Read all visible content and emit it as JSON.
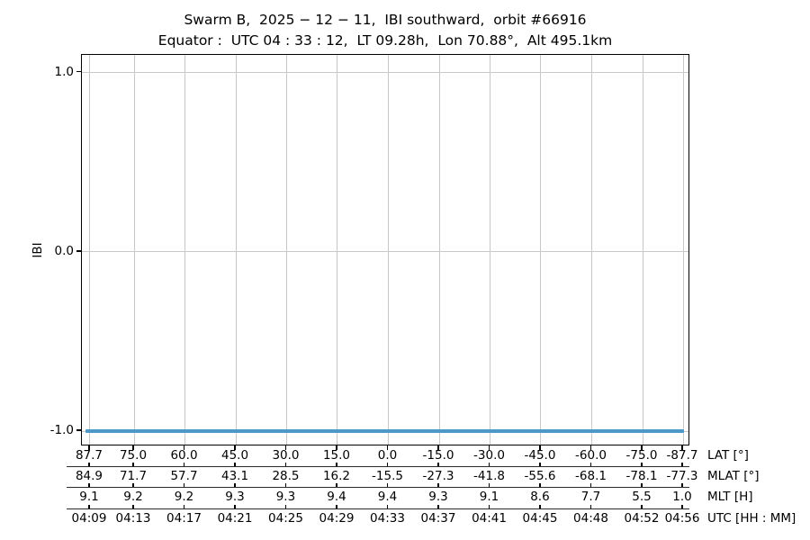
{
  "title": "Swarm B,  2025 − 12 − 11,  IBI southward,  orbit #66916",
  "subtitle": "Equator :  UTC 04 : 33 : 12,  LT 09.28h,  Lon 70.88°,  Alt 495.1km",
  "ylabel": "IBI",
  "row_labels": {
    "lat": "LAT [°]",
    "mlat": "MLAT [°]",
    "mlt": "MLT [H]",
    "utc": "UTC [HH : MM]"
  },
  "colors": {
    "line": "#4c99c8",
    "grid": "#c8c8c8",
    "axis": "#000000"
  },
  "chart_data": {
    "type": "line",
    "title": "Swarm B, 2025-12-11, IBI southward, orbit #66916",
    "subtitle": "Equator: UTC 04:33:12, LT 09.28h, Lon 70.88°, Alt 495.1km",
    "ylabel": "IBI",
    "ylim": [
      -1.085,
      1.1
    ],
    "grid": true,
    "y_ticks": [
      {
        "value": 1.0,
        "label": "1.0"
      },
      {
        "value": 0.0,
        "label": "0.0"
      },
      {
        "value": -1.0,
        "label": "-1.0"
      }
    ],
    "series": [
      {
        "name": "IBI",
        "color": "#4c99c8",
        "constant_value": -1.0,
        "x_start_frac": 0.006,
        "x_end_frac": 0.99,
        "note": "flat horizontal line at IBI = -1.0 across the entire southward pass"
      }
    ],
    "x_rows": [
      {
        "key": "lat",
        "label": "LAT [°]"
      },
      {
        "key": "mlat",
        "label": "MLAT [°]"
      },
      {
        "key": "mlt",
        "label": "MLT [H]"
      },
      {
        "key": "utc",
        "label": "UTC [HH : MM]"
      }
    ],
    "x_ticks": [
      {
        "x_frac": 0.0133,
        "lat": "87.7",
        "mlat": "84.9",
        "mlt": "9.1",
        "utc": "04:09"
      },
      {
        "x_frac": 0.0858,
        "lat": "75.0",
        "mlat": "71.7",
        "mlt": "9.2",
        "utc": "04:13"
      },
      {
        "x_frac": 0.1694,
        "lat": "60.0",
        "mlat": "57.7",
        "mlt": "9.2",
        "utc": "04:17"
      },
      {
        "x_frac": 0.253,
        "lat": "45.0",
        "mlat": "43.1",
        "mlt": "9.3",
        "utc": "04:21"
      },
      {
        "x_frac": 0.3365,
        "lat": "30.0",
        "mlat": "28.5",
        "mlt": "9.3",
        "utc": "04:25"
      },
      {
        "x_frac": 0.4201,
        "lat": "15.0",
        "mlat": "16.2",
        "mlt": "9.4",
        "utc": "04:29"
      },
      {
        "x_frac": 0.5037,
        "lat": "0.0",
        "mlat": "-15.5",
        "mlt": "9.4",
        "utc": "04:33"
      },
      {
        "x_frac": 0.5873,
        "lat": "-15.0",
        "mlat": "-27.3",
        "mlt": "9.3",
        "utc": "04:37"
      },
      {
        "x_frac": 0.6709,
        "lat": "-30.0",
        "mlat": "-41.8",
        "mlt": "9.1",
        "utc": "04:41"
      },
      {
        "x_frac": 0.7544,
        "lat": "-45.0",
        "mlat": "-55.6",
        "mlt": "8.6",
        "utc": "04:45"
      },
      {
        "x_frac": 0.838,
        "lat": "-60.0",
        "mlat": "-68.1",
        "mlt": "7.7",
        "utc": "04:48"
      },
      {
        "x_frac": 0.9216,
        "lat": "-75.0",
        "mlat": "-78.1",
        "mlt": "5.5",
        "utc": "04:52"
      },
      {
        "x_frac": 0.9882,
        "lat": "-87.7",
        "mlat": "-77.3",
        "mlt": "1.0",
        "utc": "04:56"
      }
    ]
  }
}
